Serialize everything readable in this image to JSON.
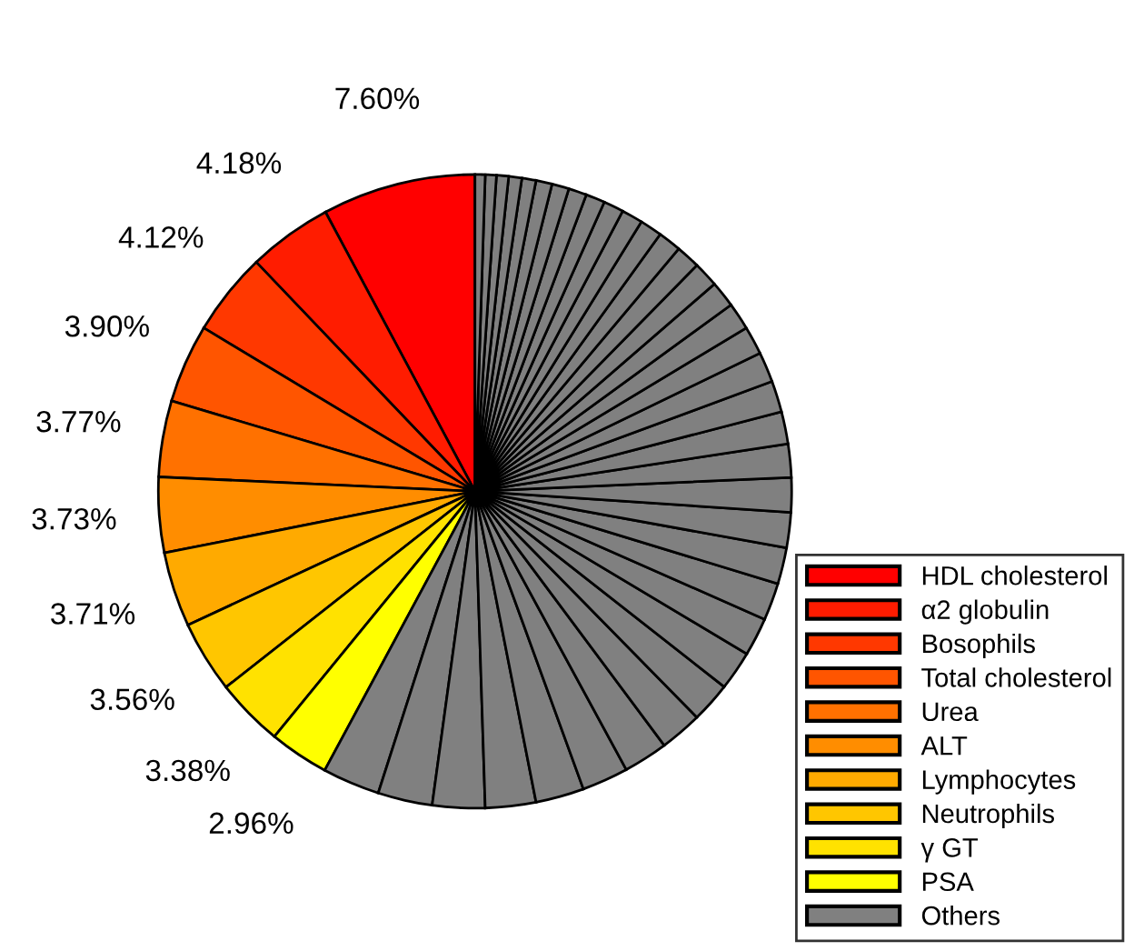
{
  "chart_data": {
    "type": "pie",
    "categories": [
      "HDL cholesterol",
      "α2 globulin",
      "Bosophils",
      "Total cholesterol",
      "Urea",
      "ALT",
      "Lymphocytes",
      "Neutrophils",
      "γ GT",
      "PSA",
      "Others",
      null,
      null,
      null,
      null,
      null,
      null,
      null,
      null,
      null,
      null,
      null,
      null,
      null,
      null,
      null,
      null,
      null,
      null,
      null,
      null,
      null,
      null,
      null,
      null,
      null,
      null,
      null,
      null,
      null,
      null,
      null,
      null,
      null,
      null,
      null,
      null
    ],
    "values": [
      7.6,
      4.18,
      4.12,
      3.9,
      3.77,
      3.73,
      3.71,
      3.56,
      3.38,
      2.96,
      2.84,
      2.7,
      2.6,
      2.5,
      2.4,
      2.3,
      2.2,
      2.1,
      2.0,
      1.95,
      1.9,
      1.85,
      1.8,
      1.75,
      1.7,
      1.65,
      1.6,
      1.55,
      1.5,
      1.4,
      1.35,
      1.3,
      1.25,
      1.2,
      1.15,
      1.1,
      1.05,
      1.0,
      0.95,
      0.9,
      0.85,
      0.8,
      0.7,
      0.65,
      0.6,
      0.55,
      0.5
    ],
    "value_labels": [
      "7.60%",
      "4.18%",
      "4.12%",
      "3.90%",
      "3.77%",
      "3.73%",
      "3.71%",
      "3.56%",
      "3.38%",
      "2.96%",
      null,
      null,
      null,
      null,
      null,
      null,
      null,
      null,
      null,
      null,
      null,
      null,
      null,
      null,
      null,
      null,
      null,
      null,
      null,
      null,
      null,
      null,
      null,
      null,
      null,
      null,
      null,
      null,
      null,
      null,
      null,
      null,
      null,
      null,
      null,
      null,
      null
    ],
    "colors": [
      "#ff0000",
      "#ff1c00",
      "#ff3800",
      "#ff5500",
      "#ff7100",
      "#ff8d00",
      "#ffaa00",
      "#ffc600",
      "#ffe200",
      "#ffff00",
      "#808080",
      "#808080",
      "#808080",
      "#808080",
      "#808080",
      "#808080",
      "#808080",
      "#808080",
      "#808080",
      "#808080",
      "#808080",
      "#808080",
      "#808080",
      "#808080",
      "#808080",
      "#808080",
      "#808080",
      "#808080",
      "#808080",
      "#808080",
      "#808080",
      "#808080",
      "#808080",
      "#808080",
      "#808080",
      "#808080",
      "#808080",
      "#808080",
      "#808080",
      "#808080",
      "#808080",
      "#808080",
      "#808080",
      "#808080",
      "#808080",
      "#808080",
      "#808080"
    ],
    "legend": "bottom right"
  }
}
